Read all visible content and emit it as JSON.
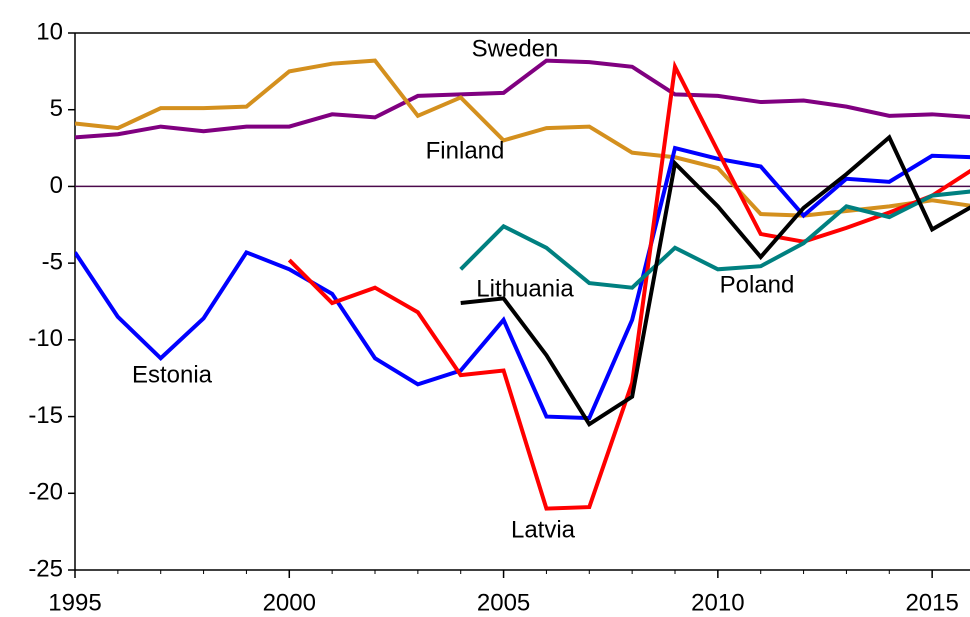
{
  "chart_data": {
    "type": "line",
    "x": [
      1995,
      1996,
      1997,
      1998,
      1999,
      2000,
      2001,
      2002,
      2003,
      2004,
      2005,
      2006,
      2007,
      2008,
      2009,
      2010,
      2011,
      2012,
      2013,
      2014,
      2015,
      2016
    ],
    "series": [
      {
        "name": "Sweden",
        "color": "#800080",
        "values": [
          3.2,
          3.4,
          3.9,
          3.6,
          3.9,
          3.9,
          4.7,
          4.5,
          5.9,
          6.0,
          6.1,
          8.2,
          8.1,
          7.8,
          6.0,
          5.9,
          5.5,
          5.6,
          5.2,
          4.6,
          4.7,
          4.5
        ]
      },
      {
        "name": "Finland",
        "color": "#d4901e",
        "values": [
          4.1,
          3.8,
          5.1,
          5.1,
          5.2,
          7.5,
          8.0,
          8.2,
          4.6,
          5.8,
          3.0,
          3.8,
          3.9,
          2.2,
          1.9,
          1.2,
          -1.8,
          -1.9,
          -1.6,
          -1.3,
          -0.9,
          -1.3
        ]
      },
      {
        "name": "Estonia",
        "color": "#0000ff",
        "values": [
          -4.3,
          -8.5,
          -11.2,
          -8.6,
          -4.3,
          -5.4,
          -7.0,
          -11.2,
          -12.9,
          -12.0,
          -8.7,
          -15.0,
          -15.1,
          -8.7,
          2.5,
          1.8,
          1.3,
          -1.9,
          0.5,
          0.3,
          2.0,
          1.9
        ]
      },
      {
        "name": "Latvia",
        "color": "#ff0000",
        "values": [
          null,
          null,
          null,
          null,
          null,
          -4.8,
          -7.6,
          -6.6,
          -8.2,
          -12.3,
          -12.0,
          -21.0,
          -20.9,
          -12.8,
          7.8,
          2.3,
          -3.1,
          -3.6,
          -2.7,
          -1.7,
          -0.6,
          1.2
        ]
      },
      {
        "name": "Lithuania",
        "color": "#008080",
        "values": [
          null,
          null,
          null,
          null,
          null,
          null,
          null,
          null,
          null,
          -5.4,
          -2.6,
          -4.0,
          -6.3,
          -6.6,
          -4.0,
          -5.4,
          -5.2,
          -3.7,
          -1.3,
          -2.0,
          -0.6,
          -0.3
        ]
      },
      {
        "name": "Poland",
        "color": "#000000",
        "values": [
          null,
          null,
          null,
          null,
          null,
          null,
          null,
          null,
          null,
          -7.6,
          -7.3,
          -11.0,
          -15.5,
          -13.7,
          1.5,
          -1.3,
          -4.6,
          -1.4,
          0.8,
          3.2,
          -2.8,
          -1.2
        ]
      }
    ],
    "xlim": [
      1995,
      2016
    ],
    "xticks": [
      1995,
      2000,
      2005,
      2010,
      2015
    ],
    "ylim": [
      -25,
      10
    ],
    "yticks": [
      10,
      5,
      0,
      -5,
      -10,
      -15,
      -20,
      -25
    ]
  }
}
